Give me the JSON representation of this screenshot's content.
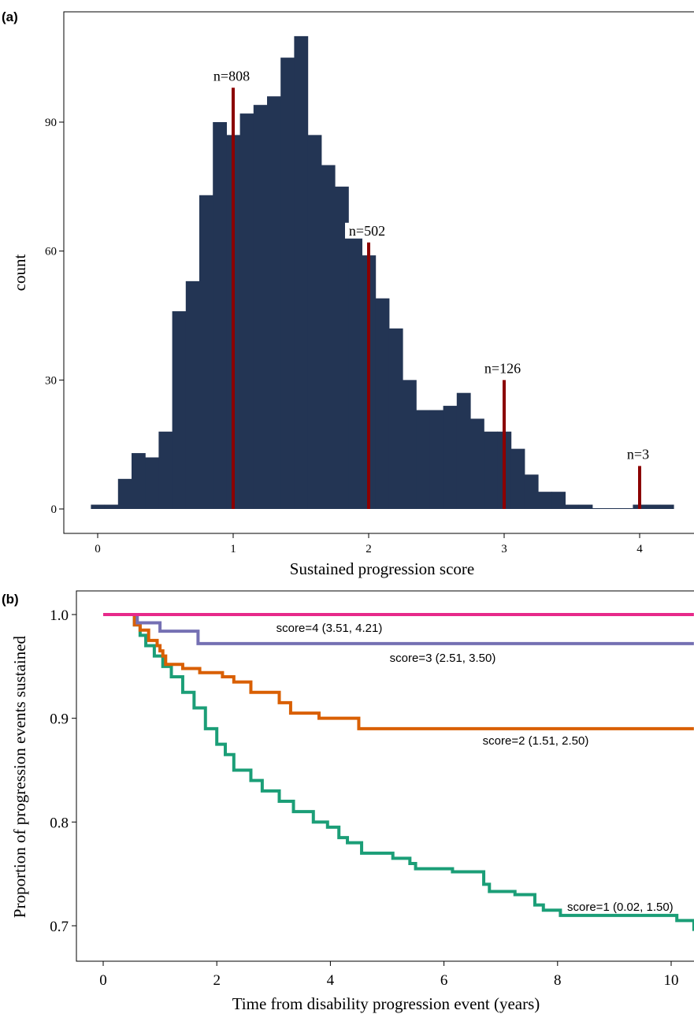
{
  "chart_data": [
    {
      "panel_label": "(a)",
      "type": "bar",
      "xlabel": "Sustained progression score",
      "ylabel": "count",
      "xlim": [
        -0.1,
        4.4
      ],
      "ylim": [
        0,
        110
      ],
      "x_ticks": [
        "0",
        "1",
        "2",
        "3",
        "4"
      ],
      "y_ticks": [
        "0",
        "30",
        "60",
        "90"
      ],
      "bin_width": 0.1,
      "bin_starts": [
        -0.05,
        0.05,
        0.15,
        0.25,
        0.35,
        0.45,
        0.55,
        0.65,
        0.75,
        0.85,
        0.95,
        1.05,
        1.15,
        1.25,
        1.35,
        1.45,
        1.55,
        1.65,
        1.75,
        1.85,
        1.95,
        2.05,
        2.15,
        2.25,
        2.35,
        2.45,
        2.55,
        2.65,
        2.75,
        2.85,
        2.95,
        3.05,
        3.15,
        3.25,
        3.35,
        3.45,
        3.55,
        3.65,
        3.75,
        3.85,
        3.95,
        4.05,
        4.15
      ],
      "counts": [
        1,
        1,
        7,
        13,
        12,
        18,
        46,
        53,
        73,
        90,
        87,
        92,
        94,
        96,
        105,
        110,
        87,
        80,
        75,
        66,
        59,
        49,
        42,
        30,
        23,
        23,
        24,
        27,
        21,
        18,
        18,
        14,
        8,
        4,
        4,
        1,
        1,
        0,
        0,
        0,
        1,
        1,
        1
      ],
      "bar_color": "#233554",
      "reference_lines": [
        {
          "x": 1,
          "height": 98,
          "label": "n=808"
        },
        {
          "x": 2,
          "height": 62,
          "label": "n=502"
        },
        {
          "x": 3,
          "height": 30,
          "label": "n=126"
        },
        {
          "x": 4,
          "height": 10,
          "label": "n=3"
        }
      ],
      "reference_color": "#8b0000"
    },
    {
      "panel_label": "(b)",
      "type": "line",
      "xlabel": "Time from disability progression event (years)",
      "ylabel": "Proportion of progression events sustained",
      "xlim": [
        -0.5,
        10.4
      ],
      "ylim": [
        0.665,
        1.015
      ],
      "x_ticks": [
        "0",
        "2",
        "4",
        "6",
        "8",
        "10"
      ],
      "y_ticks": [
        "0.7",
        "0.8",
        "0.9",
        "1.0"
      ],
      "series": [
        {
          "name": "score=4 (3.51, 4.21)",
          "color": "#e7298a",
          "x": [
            0,
            10.4
          ],
          "y": [
            1.0,
            1.0
          ]
        },
        {
          "name": "score=3 (2.51, 3.50)",
          "color": "#7570b3",
          "x": [
            0,
            0.6,
            0.6,
            1.0,
            1.0,
            1.67,
            1.67,
            10.4
          ],
          "y": [
            1.0,
            1.0,
            0.992,
            0.992,
            0.984,
            0.984,
            0.972,
            0.972
          ]
        },
        {
          "name": "score=2 (1.51, 2.50)",
          "color": "#d95f02",
          "x": [
            0,
            0.48,
            0.55,
            0.65,
            0.8,
            0.95,
            1.0,
            1.05,
            1.1,
            1.4,
            1.7,
            2.1,
            2.3,
            2.6,
            3.1,
            3.3,
            3.8,
            4.5,
            10.4
          ],
          "y": [
            1.0,
            1.0,
            0.99,
            0.985,
            0.975,
            0.97,
            0.965,
            0.96,
            0.952,
            0.948,
            0.944,
            0.94,
            0.935,
            0.925,
            0.915,
            0.905,
            0.9,
            0.89,
            0.89
          ],
          "step": true
        },
        {
          "name": "score=1 (0.02, 1.50)",
          "color": "#1b9e77",
          "x": [
            0,
            0.45,
            0.55,
            0.65,
            0.75,
            0.9,
            1.05,
            1.2,
            1.4,
            1.6,
            1.8,
            2.0,
            2.15,
            2.3,
            2.6,
            2.8,
            3.1,
            3.35,
            3.7,
            3.95,
            4.15,
            4.3,
            4.55,
            5.1,
            5.4,
            5.5,
            6.15,
            6.7,
            6.8,
            7.25,
            7.6,
            7.75,
            8.05,
            10.1,
            10.4
          ],
          "y": [
            1.0,
            1.0,
            0.99,
            0.98,
            0.97,
            0.96,
            0.95,
            0.94,
            0.925,
            0.91,
            0.89,
            0.875,
            0.865,
            0.85,
            0.84,
            0.83,
            0.82,
            0.81,
            0.8,
            0.795,
            0.785,
            0.78,
            0.77,
            0.765,
            0.76,
            0.755,
            0.752,
            0.74,
            0.733,
            0.73,
            0.72,
            0.715,
            0.71,
            0.705,
            0.695
          ],
          "step": true
        }
      ]
    }
  ]
}
